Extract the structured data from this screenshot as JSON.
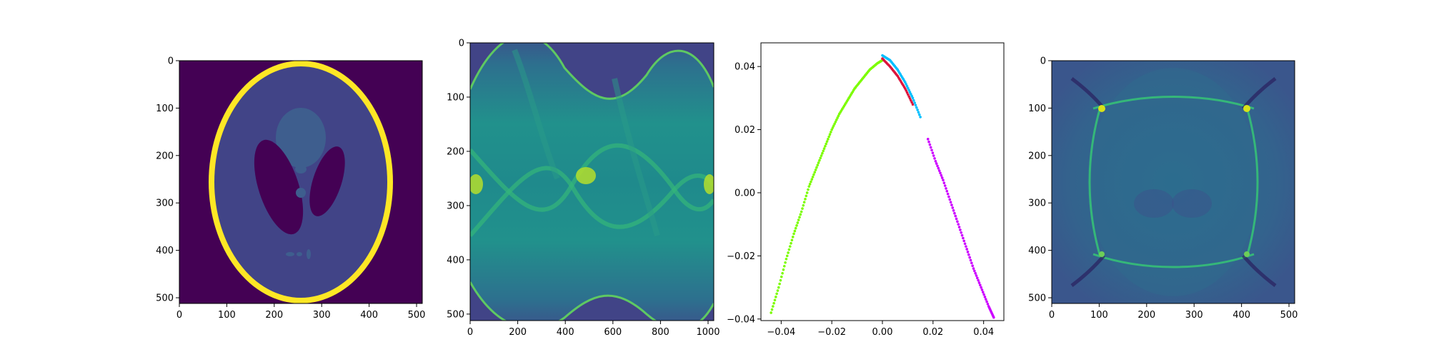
{
  "chart_data": [
    {
      "type": "heatmap",
      "colormap": "viridis",
      "content": "Shepp-Logan phantom",
      "xlim": [
        0,
        512
      ],
      "ylim": [
        512,
        0
      ],
      "xticks": [
        0,
        100,
        200,
        300,
        400,
        500
      ],
      "yticks": [
        0,
        100,
        200,
        300,
        400,
        500
      ],
      "xtick_labels": [
        "0",
        "100",
        "200",
        "300",
        "400",
        "500"
      ],
      "ytick_labels": [
        "0",
        "100",
        "200",
        "300",
        "400",
        "500"
      ],
      "grid": false
    },
    {
      "type": "heatmap",
      "colormap": "viridis",
      "content": "sinogram",
      "xlim": [
        0,
        1024
      ],
      "ylim": [
        512,
        0
      ],
      "xticks": [
        0,
        200,
        400,
        600,
        800,
        1000
      ],
      "yticks": [
        0,
        100,
        200,
        300,
        400,
        500
      ],
      "xtick_labels": [
        "0",
        "200",
        "400",
        "600",
        "800",
        "1000"
      ],
      "ytick_labels": [
        "0",
        "100",
        "200",
        "300",
        "400",
        "500"
      ],
      "grid": false
    },
    {
      "type": "scatter",
      "xlim": [
        -0.048,
        0.048
      ],
      "ylim": [
        -0.0405,
        0.0475
      ],
      "xticks": [
        -0.04,
        -0.02,
        0.0,
        0.02,
        0.04
      ],
      "yticks": [
        -0.04,
        -0.02,
        0.0,
        0.02,
        0.04
      ],
      "xtick_labels": [
        "−0.04",
        "−0.02",
        "0.00",
        "0.02",
        "0.04"
      ],
      "ytick_labels": [
        "−0.04",
        "−0.02",
        "0.00",
        "0.02",
        "0.04"
      ],
      "grid": false,
      "series": [
        {
          "color": "#7cfc00",
          "points": [
            [
              -0.044,
              -0.038
            ],
            [
              -0.041,
              -0.03
            ],
            [
              -0.038,
              -0.021
            ],
            [
              -0.035,
              -0.013
            ],
            [
              -0.032,
              -0.006
            ],
            [
              -0.029,
              0.002
            ],
            [
              -0.026,
              0.008
            ],
            [
              -0.023,
              0.014
            ],
            [
              -0.02,
              0.02
            ],
            [
              -0.017,
              0.025
            ],
            [
              -0.014,
              0.029
            ],
            [
              -0.011,
              0.033
            ],
            [
              -0.008,
              0.036
            ],
            [
              -0.005,
              0.039
            ],
            [
              -0.002,
              0.041
            ],
            [
              0.0,
              0.042
            ]
          ]
        },
        {
          "color": "#dc143c",
          "points": [
            [
              0.0,
              0.0425
            ],
            [
              0.003,
              0.04
            ],
            [
              0.006,
              0.037
            ],
            [
              0.009,
              0.033
            ],
            [
              0.012,
              0.028
            ]
          ]
        },
        {
          "color": "#00bfff",
          "points": [
            [
              0.0,
              0.0435
            ],
            [
              0.003,
              0.042
            ],
            [
              0.006,
              0.039
            ],
            [
              0.009,
              0.035
            ],
            [
              0.012,
              0.03
            ],
            [
              0.015,
              0.024
            ]
          ]
        },
        {
          "color": "#cc00ff",
          "points": [
            [
              0.018,
              0.017
            ],
            [
              0.021,
              0.01
            ],
            [
              0.024,
              0.004
            ],
            [
              0.027,
              -0.003
            ],
            [
              0.03,
              -0.01
            ],
            [
              0.033,
              -0.017
            ],
            [
              0.036,
              -0.024
            ],
            [
              0.039,
              -0.03
            ],
            [
              0.042,
              -0.036
            ],
            [
              0.044,
              -0.0395
            ]
          ]
        }
      ]
    },
    {
      "type": "heatmap",
      "colormap": "viridis",
      "content": "back-projection",
      "xlim": [
        0,
        512
      ],
      "ylim": [
        512,
        0
      ],
      "xticks": [
        0,
        100,
        200,
        300,
        400,
        500
      ],
      "yticks": [
        0,
        100,
        200,
        300,
        400,
        500
      ],
      "xtick_labels": [
        "0",
        "100",
        "200",
        "300",
        "400",
        "500"
      ],
      "ytick_labels": [
        "0",
        "100",
        "200",
        "300",
        "400",
        "500"
      ],
      "grid": false
    }
  ]
}
